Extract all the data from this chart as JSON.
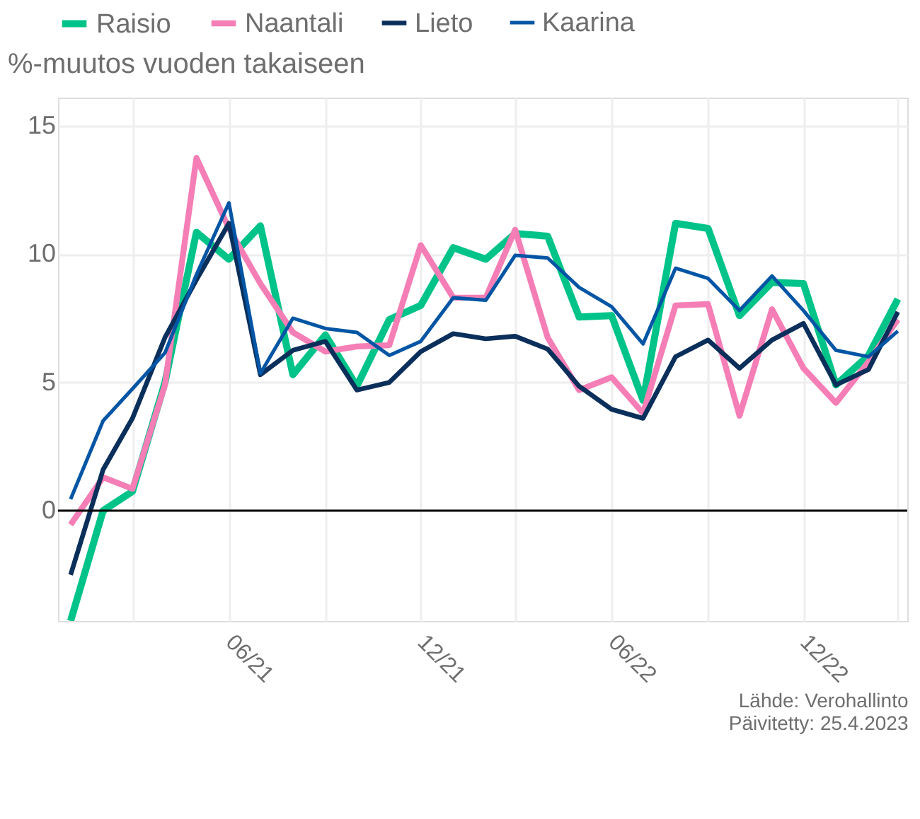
{
  "chart_data": {
    "type": "line",
    "ylabel": "%-muutos vuoden takaiseen",
    "x": [
      "2021-01",
      "2021-02",
      "2021-03",
      "2021-04",
      "2021-05",
      "2021-06",
      "2021-07",
      "2021-08",
      "2021-09",
      "2021-10",
      "2021-11",
      "2021-12",
      "2022-01",
      "2022-02",
      "2022-03",
      "2022-04",
      "2022-05",
      "2022-06",
      "2022-07",
      "2022-08",
      "2022-09",
      "2022-10",
      "2022-11",
      "2022-12",
      "2023-01",
      "2023-02",
      "2023-03"
    ],
    "series": [
      {
        "name": "Raisio",
        "color": "#00c389",
        "values": [
          -4.3,
          0.0,
          0.75,
          5.0,
          10.85,
          9.8,
          11.1,
          5.3,
          6.85,
          4.85,
          7.45,
          8.0,
          10.25,
          9.8,
          10.8,
          10.7,
          7.55,
          7.6,
          4.3,
          11.2,
          11.0,
          7.6,
          8.9,
          8.85,
          4.9,
          6.05,
          8.25
        ]
      },
      {
        "name": "Naantali",
        "color": "#f47eb5",
        "values": [
          -0.55,
          1.3,
          0.85,
          4.9,
          13.75,
          11.0,
          8.85,
          6.95,
          6.2,
          6.4,
          6.45,
          10.35,
          8.3,
          8.3,
          10.95,
          6.75,
          4.7,
          5.2,
          3.8,
          8.0,
          8.05,
          3.7,
          7.85,
          5.55,
          4.2,
          5.8,
          7.45
        ]
      },
      {
        "name": "Lieto",
        "color": "#0b2f5b",
        "values": [
          -2.5,
          1.6,
          3.6,
          6.75,
          9.0,
          11.2,
          5.3,
          6.25,
          6.6,
          4.7,
          5.0,
          6.2,
          6.9,
          6.7,
          6.8,
          6.3,
          4.85,
          3.95,
          3.6,
          6.0,
          6.65,
          5.55,
          6.65,
          7.3,
          4.9,
          5.5,
          7.75
        ]
      },
      {
        "name": "Kaarina",
        "color": "#0055a4",
        "values": [
          0.45,
          3.5,
          4.75,
          6.15,
          9.2,
          12.0,
          5.35,
          7.5,
          7.1,
          6.95,
          6.05,
          6.6,
          8.3,
          8.2,
          9.95,
          9.85,
          8.7,
          7.95,
          6.5,
          9.45,
          9.05,
          7.8,
          9.15,
          7.8,
          6.25,
          6.0,
          7.0
        ]
      }
    ],
    "xlim": [
      "2020-12-20",
      "2023-03-10"
    ],
    "xticks": [
      {
        "value": "2021-03",
        "label": null
      },
      {
        "value": "2021-06",
        "label": "06/21"
      },
      {
        "value": "2021-09",
        "label": null
      },
      {
        "value": "2021-12",
        "label": "12/21"
      },
      {
        "value": "2022-03",
        "label": null
      },
      {
        "value": "2022-06",
        "label": "06/22"
      },
      {
        "value": "2022-09",
        "label": null
      },
      {
        "value": "2022-12",
        "label": "12/22"
      },
      {
        "value": "2023-03",
        "label": null
      }
    ],
    "ylim": [
      -4.3,
      16.1
    ],
    "yticks": [
      0,
      5,
      10,
      15
    ],
    "ref_lines": [
      {
        "axis": "y",
        "value": 0,
        "color": "#000000"
      }
    ],
    "grid": true,
    "legend": "top",
    "annotations": [
      "Lähde: Verohallinto",
      "Päivitetty: 25.4.2023"
    ]
  }
}
